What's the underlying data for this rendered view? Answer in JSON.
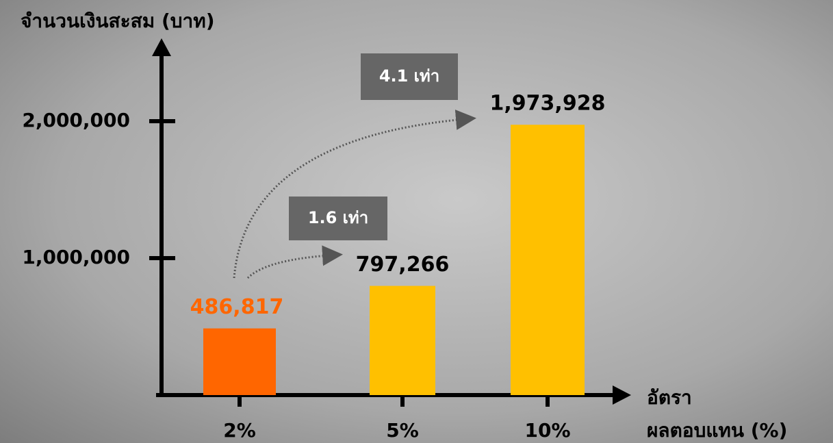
{
  "chart_data": {
    "type": "bar",
    "y_label": "จำนวนเงินสะสม (บาท)",
    "x_label": [
      "อัตรา",
      "ผลตอบแทน (%)"
    ],
    "categories": [
      "2%",
      "5%",
      "10%"
    ],
    "values": [
      486817,
      797266,
      1973928
    ],
    "value_labels": [
      "486,817",
      "797,266",
      "1,973,928"
    ],
    "colors": [
      "#ff6600",
      "#ffc000",
      "#ffc000"
    ],
    "ylim": [
      0,
      2400000
    ],
    "yticks": [
      {
        "value": 1000000,
        "label": "1,000,000"
      },
      {
        "value": 2000000,
        "label": "2,000,000"
      }
    ],
    "annotations": [
      "1.6 เท่า",
      "4.1 เท่า"
    ]
  }
}
